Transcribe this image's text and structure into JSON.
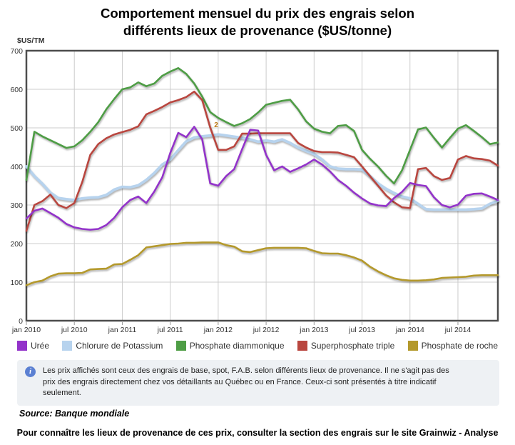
{
  "title_lines": [
    "Comportement mensuel du prix des engrais selon",
    "différents lieux de provenance ($US/tonne)"
  ],
  "y_axis_unit": "$US/TM",
  "chart_data": {
    "type": "line",
    "n_points": 60,
    "x_ticks": [
      {
        "index": 0,
        "label": "jan 2010"
      },
      {
        "index": 6,
        "label": "jul 2010"
      },
      {
        "index": 12,
        "label": "jan 2011"
      },
      {
        "index": 18,
        "label": "jul 2011"
      },
      {
        "index": 24,
        "label": "jan 2012"
      },
      {
        "index": 30,
        "label": "jul 2012"
      },
      {
        "index": 36,
        "label": "jan 2013"
      },
      {
        "index": 42,
        "label": "jul 2013"
      },
      {
        "index": 48,
        "label": "jan 2014"
      },
      {
        "index": 54,
        "label": "jul 2014"
      }
    ],
    "ylim": [
      0,
      700
    ],
    "y_ticks": [
      0,
      100,
      200,
      300,
      400,
      500,
      600,
      700
    ],
    "grid": true,
    "legend_position": "bottom",
    "series": [
      {
        "name": "Urée",
        "color": "#9333CA",
        "values": [
          265,
          285,
          291,
          279,
          267,
          251,
          242,
          238,
          236,
          238,
          248,
          267,
          294,
          313,
          322,
          305,
          335,
          372,
          435,
          487,
          476,
          503,
          470,
          356,
          350,
          375,
          393,
          445,
          495,
          493,
          430,
          390,
          400,
          386,
          395,
          405,
          418,
          405,
          387,
          365,
          350,
          332,
          317,
          304,
          299,
          297,
          318,
          334,
          357,
          352,
          349,
          320,
          300,
          294,
          301,
          324,
          329,
          330,
          322,
          313
        ]
      },
      {
        "name": "Chlorure de Potassium",
        "color": "#B7D3EE",
        "values": [
          400,
          375,
          355,
          332,
          318,
          315,
          313,
          317,
          319,
          320,
          326,
          340,
          347,
          346,
          351,
          365,
          383,
          405,
          418,
          442,
          465,
          475,
          478,
          480,
          483,
          480,
          477,
          474,
          470,
          464,
          467,
          464,
          470,
          461,
          449,
          440,
          432,
          418,
          400,
          394,
          393,
          393,
          392,
          375,
          356,
          342,
          331,
          322,
          317,
          303,
          289,
          288,
          288,
          288,
          288,
          288,
          289,
          291,
          303,
          311
        ]
      },
      {
        "name": "Phosphate diammonique",
        "color": "#4E9D45",
        "values": [
          365,
          490,
          478,
          468,
          458,
          448,
          452,
          468,
          490,
          515,
          548,
          575,
          600,
          605,
          618,
          608,
          615,
          635,
          646,
          655,
          640,
          615,
          581,
          541,
          526,
          515,
          505,
          512,
          523,
          540,
          560,
          565,
          570,
          573,
          548,
          517,
          498,
          490,
          486,
          505,
          507,
          492,
          443,
          420,
          400,
          376,
          356,
          390,
          443,
          496,
          501,
          474,
          449,
          474,
          498,
          507,
          492,
          476,
          458,
          462
        ]
      },
      {
        "name": "Superphosphate triple",
        "color": "#B9463F",
        "values": [
          233,
          300,
          310,
          327,
          300,
          292,
          305,
          360,
          430,
          458,
          473,
          483,
          489,
          495,
          504,
          535,
          544,
          554,
          566,
          572,
          580,
          594,
          572,
          501,
          443,
          443,
          452,
          485,
          485,
          486,
          486,
          486,
          486,
          486,
          461,
          449,
          440,
          437,
          437,
          436,
          430,
          424,
          400,
          375,
          350,
          325,
          307,
          294,
          292,
          393,
          396,
          375,
          365,
          370,
          418,
          427,
          421,
          419,
          415,
          402
        ]
      },
      {
        "name": "Phosphate de roche",
        "color": "#B4992C",
        "values": [
          92,
          100,
          104,
          115,
          122,
          123,
          123,
          124,
          133,
          134,
          135,
          146,
          147,
          158,
          170,
          190,
          193,
          196,
          199,
          200,
          202,
          202,
          203,
          203,
          203,
          196,
          192,
          180,
          178,
          183,
          188,
          189,
          189,
          189,
          189,
          188,
          181,
          175,
          174,
          174,
          170,
          164,
          156,
          140,
          128,
          118,
          110,
          106,
          104,
          104,
          105,
          107,
          111,
          112,
          113,
          114,
          117,
          118,
          118,
          118
        ]
      }
    ],
    "annotation": {
      "text": "2",
      "x_index": 23.5,
      "value": 502,
      "color": "#BD7B16"
    }
  },
  "info_box": {
    "lines": [
      "Les prix affichés sont ceux des engrais de base, spot, F.A.B. selon différents lieux de provenance. Il ne s'agit pas des",
      "prix des engrais directement chez vos détaillants au Québec ou en France. Ceux-ci sont présentés à titre indicatif",
      "seulement."
    ]
  },
  "source_note": "Source: Banque mondiale",
  "footer_note": "Pour connaître les lieux de provenance de ces prix, consulter la section des engrais sur le site Grainwiz - Analyse",
  "theme": {
    "grid_color": "#CCCCCC",
    "axis_border_color": "#4D4D4D",
    "tick_color": "#999999",
    "text_color": "#333333",
    "info_bg": "#EEF1F4",
    "info_icon_bg": "#5B80D2",
    "background": "#FFFFFF"
  }
}
